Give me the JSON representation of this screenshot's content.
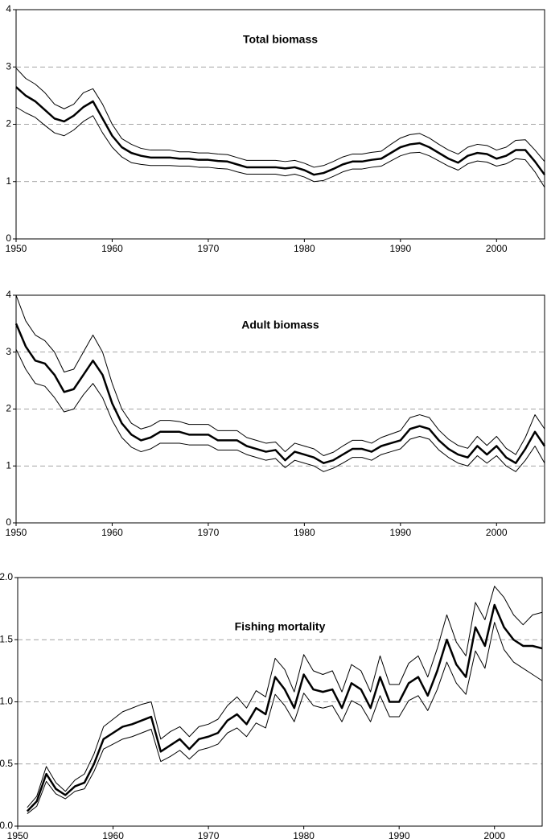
{
  "chart_data": [
    {
      "type": "line",
      "title": "Total biomass",
      "x": [
        1950,
        1951,
        1952,
        1953,
        1954,
        1955,
        1956,
        1957,
        1958,
        1959,
        1960,
        1961,
        1962,
        1963,
        1964,
        1965,
        1966,
        1967,
        1968,
        1969,
        1970,
        1971,
        1972,
        1973,
        1974,
        1975,
        1976,
        1977,
        1978,
        1979,
        1980,
        1981,
        1982,
        1983,
        1984,
        1985,
        1986,
        1987,
        1988,
        1989,
        1990,
        1991,
        1992,
        1993,
        1994,
        1995,
        1996,
        1997,
        1998,
        1999,
        2000,
        2001,
        2002,
        2003,
        2004,
        2005
      ],
      "series": [
        {
          "color": "#000000",
          "linewidth": 1,
          "values": [
            2.98,
            2.8,
            2.7,
            2.55,
            2.35,
            2.27,
            2.35,
            2.55,
            2.62,
            2.35,
            2.0,
            1.75,
            1.65,
            1.58,
            1.55,
            1.55,
            1.55,
            1.52,
            1.52,
            1.5,
            1.5,
            1.48,
            1.47,
            1.42,
            1.37,
            1.37,
            1.37,
            1.37,
            1.35,
            1.37,
            1.32,
            1.25,
            1.28,
            1.35,
            1.43,
            1.48,
            1.48,
            1.51,
            1.53,
            1.65,
            1.76,
            1.82,
            1.84,
            1.76,
            1.65,
            1.55,
            1.48,
            1.6,
            1.65,
            1.63,
            1.55,
            1.6,
            1.72,
            1.73,
            1.55,
            1.35
          ]
        },
        {
          "color": "#000000",
          "linewidth": 1,
          "values": [
            2.3,
            2.2,
            2.12,
            1.98,
            1.85,
            1.8,
            1.9,
            2.05,
            2.15,
            1.85,
            1.6,
            1.43,
            1.33,
            1.3,
            1.28,
            1.28,
            1.28,
            1.27,
            1.27,
            1.25,
            1.25,
            1.23,
            1.22,
            1.17,
            1.13,
            1.13,
            1.13,
            1.13,
            1.1,
            1.13,
            1.08,
            1.0,
            1.02,
            1.09,
            1.17,
            1.22,
            1.22,
            1.25,
            1.27,
            1.36,
            1.45,
            1.5,
            1.51,
            1.45,
            1.36,
            1.27,
            1.2,
            1.31,
            1.36,
            1.34,
            1.27,
            1.31,
            1.4,
            1.38,
            1.17,
            0.9
          ]
        },
        {
          "color": "#000000",
          "linewidth": 2.5,
          "values": [
            2.65,
            2.5,
            2.4,
            2.25,
            2.1,
            2.05,
            2.15,
            2.3,
            2.4,
            2.1,
            1.8,
            1.6,
            1.5,
            1.45,
            1.42,
            1.42,
            1.42,
            1.4,
            1.4,
            1.38,
            1.38,
            1.36,
            1.35,
            1.3,
            1.25,
            1.25,
            1.25,
            1.25,
            1.23,
            1.25,
            1.2,
            1.12,
            1.15,
            1.22,
            1.3,
            1.35,
            1.35,
            1.38,
            1.4,
            1.5,
            1.6,
            1.65,
            1.67,
            1.6,
            1.5,
            1.4,
            1.33,
            1.45,
            1.5,
            1.48,
            1.4,
            1.45,
            1.55,
            1.55,
            1.35,
            1.12
          ]
        }
      ],
      "xlim": [
        1950,
        2005
      ],
      "xticks": [
        1950,
        1960,
        1970,
        1980,
        1990,
        2000
      ],
      "ylim": [
        0,
        4
      ],
      "yticks": [
        0,
        1,
        2,
        3,
        4
      ],
      "grid": true
    },
    {
      "type": "line",
      "title": "Adult biomass",
      "x": [
        1950,
        1951,
        1952,
        1953,
        1954,
        1955,
        1956,
        1957,
        1958,
        1959,
        1960,
        1961,
        1962,
        1963,
        1964,
        1965,
        1966,
        1967,
        1968,
        1969,
        1970,
        1971,
        1972,
        1973,
        1974,
        1975,
        1976,
        1977,
        1978,
        1979,
        1980,
        1981,
        1982,
        1983,
        1984,
        1985,
        1986,
        1987,
        1988,
        1989,
        1990,
        1991,
        1992,
        1993,
        1994,
        1995,
        1996,
        1997,
        1998,
        1999,
        2000,
        2001,
        2002,
        2003,
        2004,
        2005
      ],
      "series": [
        {
          "color": "#000000",
          "linewidth": 1,
          "values": [
            4.0,
            3.55,
            3.3,
            3.2,
            3.0,
            2.65,
            2.7,
            3.0,
            3.3,
            3.0,
            2.45,
            2.0,
            1.75,
            1.65,
            1.7,
            1.8,
            1.8,
            1.78,
            1.73,
            1.73,
            1.73,
            1.62,
            1.62,
            1.62,
            1.5,
            1.45,
            1.4,
            1.42,
            1.25,
            1.4,
            1.35,
            1.3,
            1.18,
            1.24,
            1.35,
            1.45,
            1.45,
            1.4,
            1.5,
            1.56,
            1.62,
            1.85,
            1.9,
            1.85,
            1.63,
            1.47,
            1.36,
            1.31,
            1.52,
            1.36,
            1.52,
            1.31,
            1.2,
            1.5,
            1.9,
            1.65
          ]
        },
        {
          "color": "#000000",
          "linewidth": 1,
          "values": [
            3.05,
            2.7,
            2.45,
            2.4,
            2.2,
            1.95,
            2.0,
            2.25,
            2.45,
            2.2,
            1.8,
            1.5,
            1.33,
            1.25,
            1.3,
            1.4,
            1.4,
            1.4,
            1.37,
            1.37,
            1.37,
            1.28,
            1.28,
            1.28,
            1.2,
            1.15,
            1.1,
            1.13,
            0.97,
            1.1,
            1.05,
            1.0,
            0.9,
            0.96,
            1.05,
            1.15,
            1.15,
            1.1,
            1.2,
            1.25,
            1.3,
            1.47,
            1.52,
            1.47,
            1.28,
            1.15,
            1.05,
            1.0,
            1.18,
            1.05,
            1.18,
            1.0,
            0.9,
            1.1,
            1.35,
            1.05
          ]
        },
        {
          "color": "#000000",
          "linewidth": 2.5,
          "values": [
            3.5,
            3.1,
            2.85,
            2.8,
            2.6,
            2.3,
            2.35,
            2.6,
            2.85,
            2.6,
            2.1,
            1.75,
            1.55,
            1.45,
            1.5,
            1.6,
            1.6,
            1.6,
            1.55,
            1.55,
            1.55,
            1.45,
            1.45,
            1.45,
            1.35,
            1.3,
            1.25,
            1.28,
            1.1,
            1.25,
            1.2,
            1.15,
            1.05,
            1.1,
            1.2,
            1.3,
            1.3,
            1.25,
            1.35,
            1.4,
            1.45,
            1.65,
            1.7,
            1.65,
            1.45,
            1.3,
            1.2,
            1.15,
            1.35,
            1.2,
            1.35,
            1.15,
            1.05,
            1.3,
            1.6,
            1.35
          ]
        }
      ],
      "xlim": [
        1950,
        2005
      ],
      "xticks": [
        1950,
        1960,
        1970,
        1980,
        1990,
        2000
      ],
      "ylim": [
        0,
        4
      ],
      "yticks": [
        0,
        1,
        2,
        3,
        4
      ],
      "grid": true
    },
    {
      "type": "line",
      "title": "Fishing mortality",
      "x": [
        1951,
        1952,
        1953,
        1954,
        1955,
        1956,
        1957,
        1958,
        1959,
        1960,
        1961,
        1962,
        1963,
        1964,
        1965,
        1966,
        1967,
        1968,
        1969,
        1970,
        1971,
        1972,
        1973,
        1974,
        1975,
        1976,
        1977,
        1978,
        1979,
        1980,
        1981,
        1982,
        1983,
        1984,
        1985,
        1986,
        1987,
        1988,
        1989,
        1990,
        1991,
        1992,
        1993,
        1994,
        1995,
        1996,
        1997,
        1998,
        1999,
        2000,
        2001,
        2002,
        2003,
        2004,
        2005
      ],
      "series": [
        {
          "color": "#000000",
          "linewidth": 1,
          "values": [
            0.15,
            0.24,
            0.48,
            0.35,
            0.28,
            0.37,
            0.42,
            0.58,
            0.8,
            0.86,
            0.92,
            0.95,
            0.98,
            1.0,
            0.7,
            0.76,
            0.8,
            0.72,
            0.8,
            0.82,
            0.86,
            0.97,
            1.04,
            0.95,
            1.09,
            1.04,
            1.35,
            1.26,
            1.08,
            1.38,
            1.25,
            1.22,
            1.25,
            1.08,
            1.3,
            1.25,
            1.08,
            1.37,
            1.14,
            1.14,
            1.31,
            1.37,
            1.2,
            1.43,
            1.7,
            1.48,
            1.37,
            1.8,
            1.66,
            1.93,
            1.84,
            1.7,
            1.62,
            1.7,
            1.72
          ]
        },
        {
          "color": "#000000",
          "linewidth": 1,
          "values": [
            0.1,
            0.16,
            0.36,
            0.26,
            0.22,
            0.28,
            0.3,
            0.44,
            0.62,
            0.66,
            0.7,
            0.72,
            0.75,
            0.78,
            0.52,
            0.56,
            0.61,
            0.54,
            0.61,
            0.63,
            0.66,
            0.75,
            0.79,
            0.72,
            0.83,
            0.79,
            1.06,
            0.97,
            0.84,
            1.07,
            0.97,
            0.95,
            0.97,
            0.84,
            1.01,
            0.97,
            0.84,
            1.05,
            0.88,
            0.88,
            1.01,
            1.05,
            0.93,
            1.1,
            1.32,
            1.15,
            1.06,
            1.41,
            1.27,
            1.64,
            1.42,
            1.32,
            1.27,
            1.22,
            1.17
          ]
        },
        {
          "color": "#000000",
          "linewidth": 2.5,
          "values": [
            0.12,
            0.2,
            0.42,
            0.3,
            0.25,
            0.32,
            0.35,
            0.5,
            0.7,
            0.75,
            0.8,
            0.82,
            0.85,
            0.88,
            0.6,
            0.65,
            0.7,
            0.62,
            0.7,
            0.72,
            0.75,
            0.85,
            0.9,
            0.82,
            0.95,
            0.9,
            1.2,
            1.1,
            0.95,
            1.22,
            1.1,
            1.08,
            1.1,
            0.95,
            1.15,
            1.1,
            0.95,
            1.2,
            1.0,
            1.0,
            1.15,
            1.2,
            1.05,
            1.25,
            1.5,
            1.3,
            1.2,
            1.6,
            1.45,
            1.78,
            1.6,
            1.5,
            1.45,
            1.45,
            1.43
          ]
        }
      ],
      "xlim": [
        1950,
        2005
      ],
      "xticks": [
        1950,
        1960,
        1970,
        1980,
        1990,
        2000
      ],
      "ylim": [
        0,
        2
      ],
      "yticks": [
        {
          "value": 0,
          "label": "0.0"
        },
        0.5,
        {
          "value": 1,
          "label": "1.0"
        },
        1.5,
        {
          "value": 2,
          "label": "2.0"
        }
      ],
      "grid": true
    }
  ]
}
